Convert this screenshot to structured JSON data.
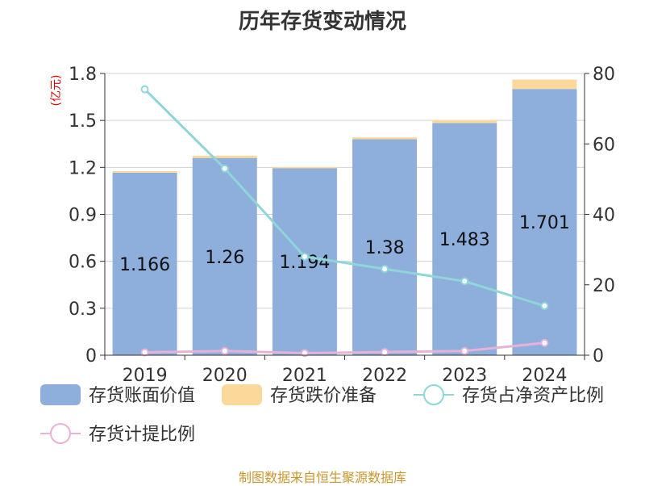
{
  "chart_data": {
    "type": "bar",
    "title": "历年存货变动情况",
    "categories": [
      "2019",
      "2020",
      "2021",
      "2022",
      "2023",
      "2024"
    ],
    "y_left": {
      "label": "(亿元)",
      "ylim": [
        0,
        1.8
      ],
      "ticks": [
        "0",
        "0.3",
        "0.6",
        "0.9",
        "1.2",
        "1.5",
        "1.8"
      ]
    },
    "y_right": {
      "ylim": [
        0,
        80
      ],
      "ticks": [
        "0",
        "20",
        "40",
        "60",
        "80"
      ]
    },
    "series": [
      {
        "name": "存货账面价值",
        "type": "bar",
        "stack": "inv",
        "axis": "left",
        "color": "#8eaedb",
        "values": [
          1.166,
          1.26,
          1.194,
          1.38,
          1.483,
          1.701
        ],
        "labels": [
          "1.166",
          "1.26",
          "1.194",
          "1.38",
          "1.483",
          "1.701"
        ]
      },
      {
        "name": "存货跌价准备",
        "type": "bar",
        "stack": "inv",
        "axis": "left",
        "color": "#fdd89b",
        "values": [
          0.01,
          0.015,
          0.008,
          0.012,
          0.018,
          0.06
        ]
      },
      {
        "name": "存货占净资产比例",
        "type": "line",
        "axis": "right",
        "color": "#8ed6d8",
        "values": [
          75.5,
          53,
          28,
          24.5,
          21,
          14
        ]
      },
      {
        "name": "存货计提比例",
        "type": "line",
        "axis": "right",
        "color": "#e6b3d6",
        "values": [
          0.8,
          1.2,
          0.6,
          0.9,
          1.2,
          3.5
        ]
      }
    ],
    "legend_position": "bottom",
    "grid": true
  },
  "source": "制图数据来自恒生聚源数据库"
}
